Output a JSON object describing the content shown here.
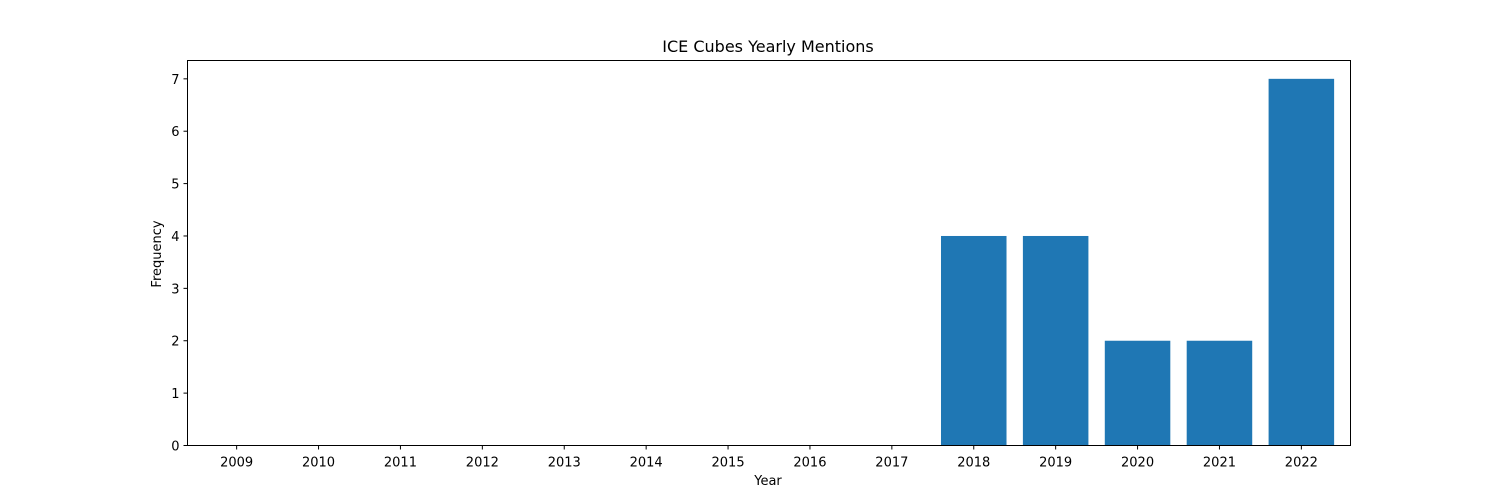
{
  "chart_data": {
    "type": "bar",
    "title": "ICE Cubes Yearly Mentions",
    "xlabel": "Year",
    "ylabel": "Frequency",
    "categories": [
      "2009",
      "2010",
      "2011",
      "2012",
      "2013",
      "2014",
      "2015",
      "2016",
      "2017",
      "2018",
      "2019",
      "2020",
      "2021",
      "2022"
    ],
    "values": [
      0,
      0,
      0,
      0,
      0,
      0,
      0,
      0,
      0,
      4,
      4,
      2,
      2,
      7
    ],
    "ylim": [
      0,
      7.35
    ],
    "yticks": [
      "0",
      "1",
      "2",
      "3",
      "4",
      "5",
      "6",
      "7"
    ],
    "grid": false,
    "bar_color": "#1f77b4"
  }
}
